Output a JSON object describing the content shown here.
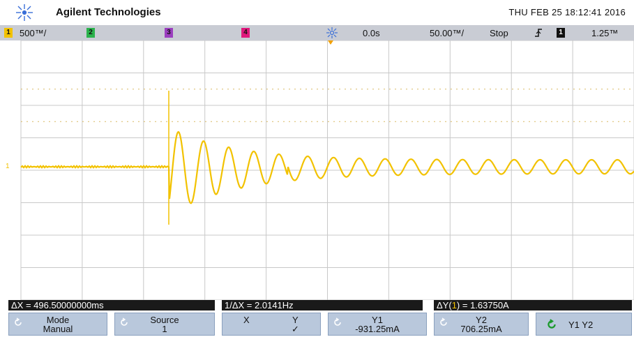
{
  "header": {
    "brand": "Agilent Technologies",
    "datetime": "THU FEB 25 18:12:41 2016"
  },
  "status": {
    "ch1": {
      "label": "1",
      "scale": "500™/",
      "color": "#f2c200"
    },
    "ch2": {
      "label": "2",
      "color": "#2bb24c"
    },
    "ch3": {
      "label": "3",
      "color": "#9b3fbf"
    },
    "ch4": {
      "label": "4",
      "color": "#e0187c"
    },
    "delay": "0.0s",
    "timebase": "50.00™/",
    "run_state": "Stop",
    "trigger_channel": "1",
    "trigger_level": "1.25™"
  },
  "trace": {
    "color": "#f2c200",
    "ground_marker": "1"
  },
  "measurements": {
    "delta_x": "ΔX = 496.50000000ms",
    "inv_delta_x": "1/ΔX = 2.0141Hz",
    "delta_y_prefix": "ΔY(",
    "delta_y_channel": "1",
    "delta_y_suffix": ") = 1.63750A"
  },
  "softkeys": {
    "mode": {
      "line1": "Mode",
      "line2": "Manual"
    },
    "source": {
      "line1": "Source",
      "line2": "1"
    },
    "xy": {
      "x": "X",
      "y": "Y",
      "check": "✓"
    },
    "y1": {
      "line1": "Y1",
      "line2": "-931.25mA"
    },
    "y2": {
      "line1": "Y2",
      "line2": "706.25mA"
    },
    "y1y2": {
      "label": "Y1 Y2"
    }
  }
}
